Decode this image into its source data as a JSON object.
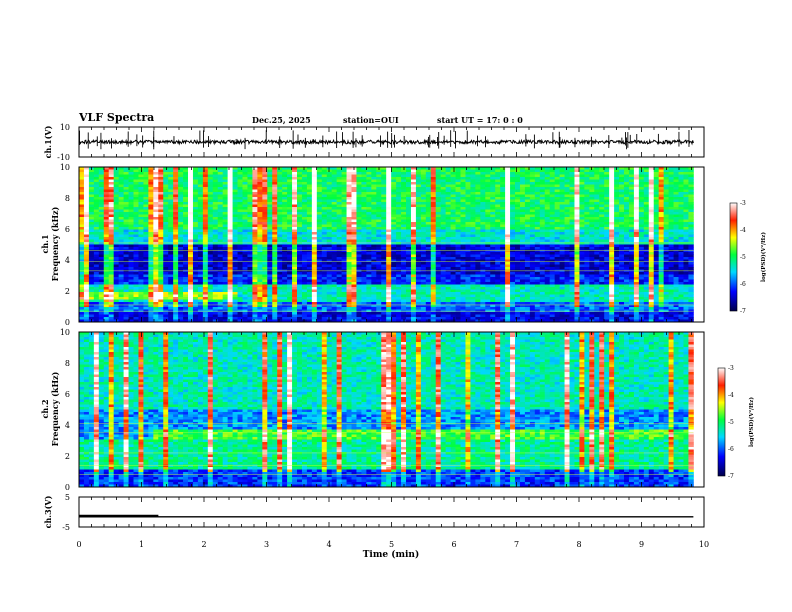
{
  "header": {
    "title": "VLF Spectra",
    "date": "Dec.25, 2025",
    "station": "station=OUI",
    "start_ut": "start  UT  =   17: 0  : 0"
  },
  "chart_data": [
    {
      "type": "line",
      "name": "waveform-ch1",
      "ylabel": "ch.1(V)",
      "ylim": [
        -10,
        10
      ],
      "yticks": [
        "10",
        "-10"
      ],
      "xlim": [
        0,
        10
      ],
      "grid": false
    },
    {
      "type": "heatmap",
      "name": "spectrogram-ch1",
      "ylabel": "ch.1\nFrequency  (kHz)",
      "ylim": [
        0,
        10
      ],
      "yticks": [
        "10",
        "8",
        "6",
        "4",
        "2",
        "0"
      ],
      "xlim": [
        0,
        10
      ],
      "data_end_min": 9.83,
      "colorbar": {
        "label": "log(PSD)(V²/Hz)",
        "range": [
          -7,
          -3
        ],
        "ticks": [
          "-3",
          "-4",
          "-5",
          "-6",
          "-7"
        ],
        "colors": [
          "#00004a",
          "#0000ff",
          "#00d8ff",
          "#00ff40",
          "#ffff00",
          "#ff2000",
          "#ffffff"
        ]
      }
    },
    {
      "type": "heatmap",
      "name": "spectrogram-ch2",
      "ylabel": "ch.2\nFrequency  (kHz)",
      "ylim": [
        0,
        10
      ],
      "yticks": [
        "10",
        "8",
        "6",
        "4",
        "2",
        "0"
      ],
      "xlim": [
        0,
        10
      ],
      "data_end_min": 9.83,
      "colorbar": {
        "label": "log(PSD)(V²/Hz)",
        "range": [
          -7,
          -3
        ],
        "ticks": [
          "-3",
          "-4",
          "-5",
          "-6",
          "-7"
        ],
        "colors": [
          "#00004a",
          "#0000ff",
          "#00d8ff",
          "#00ff40",
          "#ffff00",
          "#ff2000",
          "#ffffff"
        ]
      }
    },
    {
      "type": "line",
      "name": "waveform-ch3",
      "ylabel": "ch.3(V)",
      "ylim": [
        -5,
        5
      ],
      "yticks": [
        "5",
        "-5"
      ],
      "xlim": [
        0,
        10
      ],
      "series": [
        {
          "x": [
            0.0,
            9.83
          ],
          "y": [
            -1.6,
            -1.6
          ]
        },
        {
          "x": [
            0.0,
            1.27
          ],
          "y": [
            -1.3,
            -1.3
          ]
        }
      ]
    }
  ],
  "xaxis": {
    "label": "Time  (min)",
    "ticks": [
      "0",
      "1",
      "2",
      "3",
      "4",
      "5",
      "6",
      "7",
      "8",
      "9",
      "10"
    ]
  }
}
